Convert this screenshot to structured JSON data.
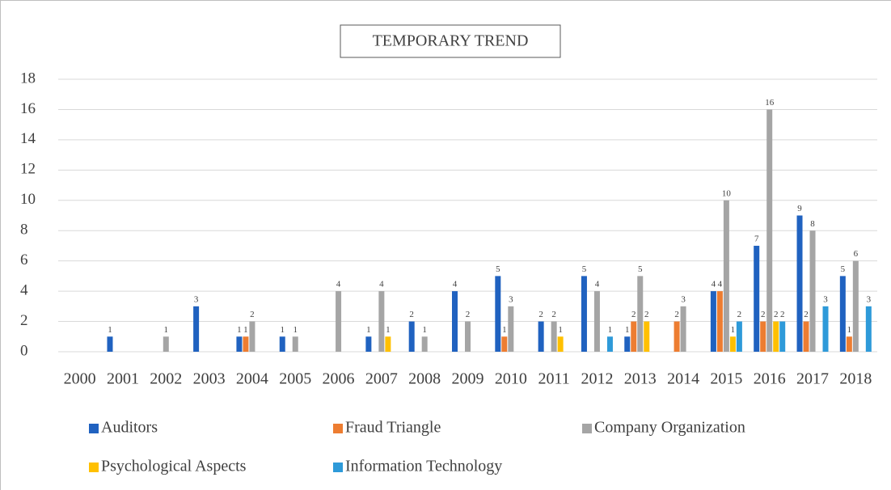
{
  "chart_data": {
    "type": "bar",
    "title": "TEMPORARY TREND",
    "categories": [
      "2000",
      "2001",
      "2002",
      "2003",
      "2004",
      "2005",
      "2006",
      "2007",
      "2008",
      "2009",
      "2010",
      "2011",
      "2012",
      "2013",
      "2014",
      "2015",
      "2016",
      "2017",
      "2018"
    ],
    "series": [
      {
        "name": "Auditors",
        "color": "#2062c0",
        "values": [
          0,
          1,
          0,
          3,
          1,
          1,
          0,
          1,
          2,
          4,
          5,
          2,
          5,
          1,
          0,
          4,
          7,
          9,
          5
        ]
      },
      {
        "name": "Fraud Triangle",
        "color": "#ed7d31",
        "values": [
          0,
          0,
          0,
          0,
          1,
          0,
          0,
          0,
          0,
          0,
          1,
          0,
          0,
          2,
          2,
          4,
          2,
          2,
          1
        ]
      },
      {
        "name": "Company Organization",
        "color": "#a5a5a5",
        "values": [
          0,
          0,
          1,
          0,
          2,
          1,
          4,
          4,
          1,
          2,
          3,
          2,
          4,
          5,
          3,
          10,
          16,
          8,
          6
        ]
      },
      {
        "name": "Psychological Aspects",
        "color": "#ffc000",
        "values": [
          0,
          0,
          0,
          0,
          0,
          0,
          0,
          1,
          0,
          0,
          0,
          1,
          0,
          2,
          0,
          1,
          2,
          0,
          0
        ]
      },
      {
        "name": "Information Technology",
        "color": "#2e9ad9",
        "values": [
          0,
          0,
          0,
          0,
          0,
          0,
          0,
          0,
          0,
          0,
          0,
          0,
          1,
          0,
          0,
          2,
          2,
          3,
          3
        ]
      }
    ],
    "ylim": [
      0,
      18
    ],
    "yticks": [
      0,
      2,
      4,
      6,
      8,
      10,
      12,
      14,
      16,
      18
    ],
    "grid": true,
    "legend": "bottom"
  }
}
